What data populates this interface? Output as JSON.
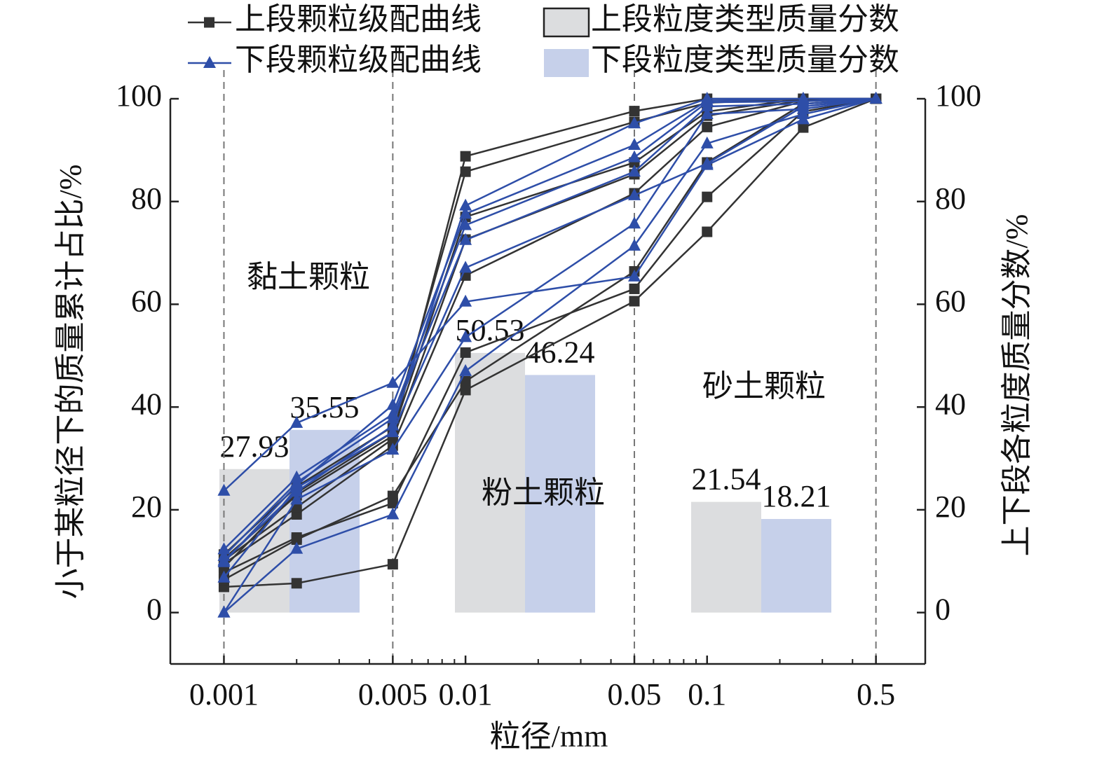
{
  "chart_data": {
    "type": "line",
    "xlabel": "粒径/mm",
    "ylabel": "小于某粒径下的质量累计占比/%",
    "y2label": "上下段各粒度质量分数/%",
    "xscale": "log",
    "xlim": [
      0.0006,
      0.8
    ],
    "xticks": [
      0.001,
      0.005,
      0.01,
      0.05,
      0.1,
      0.5
    ],
    "xminor_ticks": [
      0.002,
      0.003,
      0.004,
      0.006,
      0.007,
      0.008,
      0.009,
      0.02,
      0.03,
      0.04,
      0.06,
      0.07,
      0.08,
      0.09,
      0.2,
      0.3,
      0.4
    ],
    "dividers": [
      0.001,
      0.005,
      0.05,
      0.5
    ],
    "ylim": [
      -10,
      100
    ],
    "yticks": [
      0,
      20,
      40,
      60,
      80,
      100
    ],
    "y2lim": [
      -10,
      100
    ],
    "y2ticks": [
      0,
      20,
      40,
      60,
      80,
      100
    ],
    "x": [
      0.001,
      0.002,
      0.005,
      0.01,
      0.05,
      0.1,
      0.25,
      0.5
    ],
    "line_groups": [
      {
        "name": "上段颗粒级配曲线",
        "color": "#333333",
        "marker": "square",
        "curves": [
          [
            5,
            5.7,
            9.4,
            43.3,
            60.6,
            74.1,
            94.4,
            100
          ],
          [
            7.8,
            14.6,
            21.3,
            50.6,
            63,
            80.9,
            97.5,
            100
          ],
          [
            6.4,
            14.2,
            22.7,
            45,
            66.4,
            87.6,
            99,
            100
          ],
          [
            9.5,
            19.1,
            32.5,
            65.6,
            81.6,
            94.5,
            99.5,
            100
          ],
          [
            10.2,
            20.5,
            33.8,
            72.6,
            85.3,
            96.7,
            99.7,
            100
          ],
          [
            8.8,
            23.3,
            35.1,
            77,
            87.6,
            97.5,
            100,
            100
          ],
          [
            11.3,
            24.5,
            36.2,
            85.8,
            95.5,
            99.2,
            100,
            100
          ],
          [
            10.5,
            22.8,
            34.4,
            88.8,
            97.6,
            100,
            100,
            100
          ]
        ]
      },
      {
        "name": "下段颗粒级配曲线",
        "color": "#2e4ea8",
        "marker": "triangle",
        "curves": [
          [
            23.7,
            36.9,
            44.7,
            60.5,
            65.4,
            87.1,
            96,
            100
          ],
          [
            0,
            12.4,
            19.1,
            47,
            71.4,
            91.3,
            97,
            100
          ],
          [
            0,
            22,
            31.7,
            53.6,
            75.7,
            97,
            98,
            100
          ],
          [
            6.8,
            24.3,
            35.1,
            67.1,
            81.2,
            87.4,
            98.5,
            100
          ],
          [
            11,
            25.3,
            37.8,
            72.5,
            85.8,
            98.5,
            99,
            100
          ],
          [
            12.3,
            26.3,
            38.6,
            75.4,
            88.6,
            99.3,
            99.5,
            100
          ],
          [
            9.8,
            24.8,
            40.4,
            77.6,
            91,
            99.6,
            100,
            100
          ],
          [
            10.1,
            23.5,
            36.4,
            79.2,
            95.2,
            100,
            100,
            100
          ]
        ]
      }
    ],
    "bar_categories": [
      "黏土颗粒",
      "粉土颗粒",
      "砂土颗粒"
    ],
    "bar_series": [
      {
        "name": "上段粒度类型质量分数",
        "color": "#dcdddf",
        "axis": "y2",
        "values": [
          27.93,
          50.53,
          21.54
        ]
      },
      {
        "name": "下段粒度类型质量分数",
        "color": "#c6d0ea",
        "axis": "y2",
        "values": [
          35.55,
          46.24,
          18.21
        ]
      }
    ]
  }
}
